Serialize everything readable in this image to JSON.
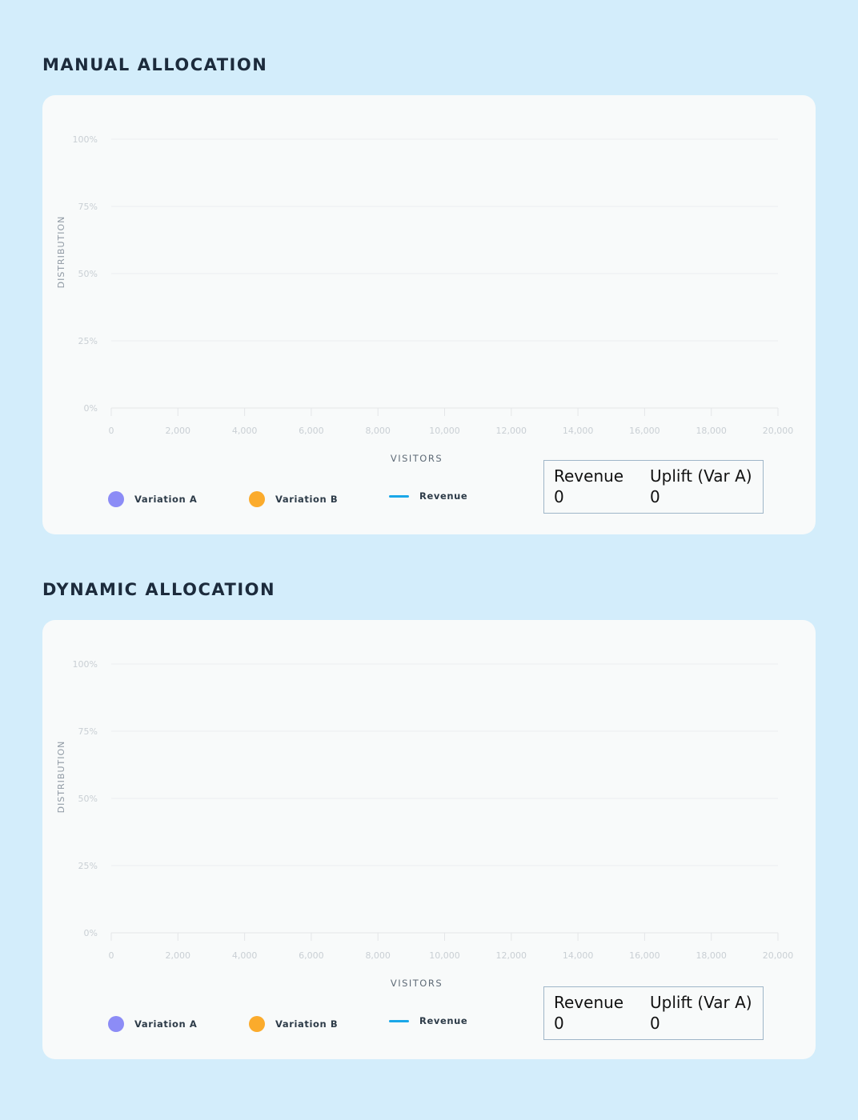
{
  "sections": [
    {
      "title": "MANUAL ALLOCATION",
      "legend": [
        {
          "label": "Variation A",
          "color": "#8c8cf6",
          "kind": "dot"
        },
        {
          "label": "Variation B",
          "color": "#fbab2c",
          "kind": "dot"
        },
        {
          "label": "Revenue",
          "color": "#1aa7e8",
          "kind": "line"
        }
      ],
      "stats": {
        "revenue_label": "Revenue",
        "revenue_value": "0",
        "uplift_label": "Uplift (Var A)",
        "uplift_value": "0"
      }
    },
    {
      "title": "DYNAMIC ALLOCATION",
      "legend": [
        {
          "label": "Variation A",
          "color": "#8c8cf6",
          "kind": "dot"
        },
        {
          "label": "Variation B",
          "color": "#fbab2c",
          "kind": "dot"
        },
        {
          "label": "Revenue",
          "color": "#1aa7e8",
          "kind": "line"
        }
      ],
      "stats": {
        "revenue_label": "Revenue",
        "revenue_value": "0",
        "uplift_label": "Uplift (Var A)",
        "uplift_value": "0"
      }
    }
  ],
  "chart_data": [
    {
      "type": "area",
      "title": "MANUAL ALLOCATION",
      "xlabel": "VISITORS",
      "ylabel": "DISTRIBUTION",
      "xlim": [
        0,
        20000
      ],
      "ylim": [
        0,
        100
      ],
      "x_ticks": [
        0,
        2000,
        4000,
        6000,
        8000,
        10000,
        12000,
        14000,
        16000,
        18000,
        20000
      ],
      "x_tick_labels": [
        "0",
        "2,000",
        "4,000",
        "6,000",
        "8,000",
        "10,000",
        "12,000",
        "14,000",
        "16,000",
        "18,000",
        "20,000"
      ],
      "y_ticks": [
        0,
        25,
        50,
        75,
        100
      ],
      "y_tick_labels": [
        "0%",
        "25%",
        "50%",
        "75%",
        "100%"
      ],
      "grid": true,
      "legend_position": "bottom",
      "series": [
        {
          "name": "Variation A",
          "values": []
        },
        {
          "name": "Variation B",
          "values": []
        },
        {
          "name": "Revenue",
          "values": []
        }
      ]
    },
    {
      "type": "area",
      "title": "DYNAMIC ALLOCATION",
      "xlabel": "VISITORS",
      "ylabel": "DISTRIBUTION",
      "xlim": [
        0,
        20000
      ],
      "ylim": [
        0,
        100
      ],
      "x_ticks": [
        0,
        2000,
        4000,
        6000,
        8000,
        10000,
        12000,
        14000,
        16000,
        18000,
        20000
      ],
      "x_tick_labels": [
        "0",
        "2,000",
        "4,000",
        "6,000",
        "8,000",
        "10,000",
        "12,000",
        "14,000",
        "16,000",
        "18,000",
        "20,000"
      ],
      "y_ticks": [
        0,
        25,
        50,
        75,
        100
      ],
      "y_tick_labels": [
        "0%",
        "25%",
        "50%",
        "75%",
        "100%"
      ],
      "grid": true,
      "legend_position": "bottom",
      "series": [
        {
          "name": "Variation A",
          "values": []
        },
        {
          "name": "Variation B",
          "values": []
        },
        {
          "name": "Revenue",
          "values": []
        }
      ]
    }
  ]
}
